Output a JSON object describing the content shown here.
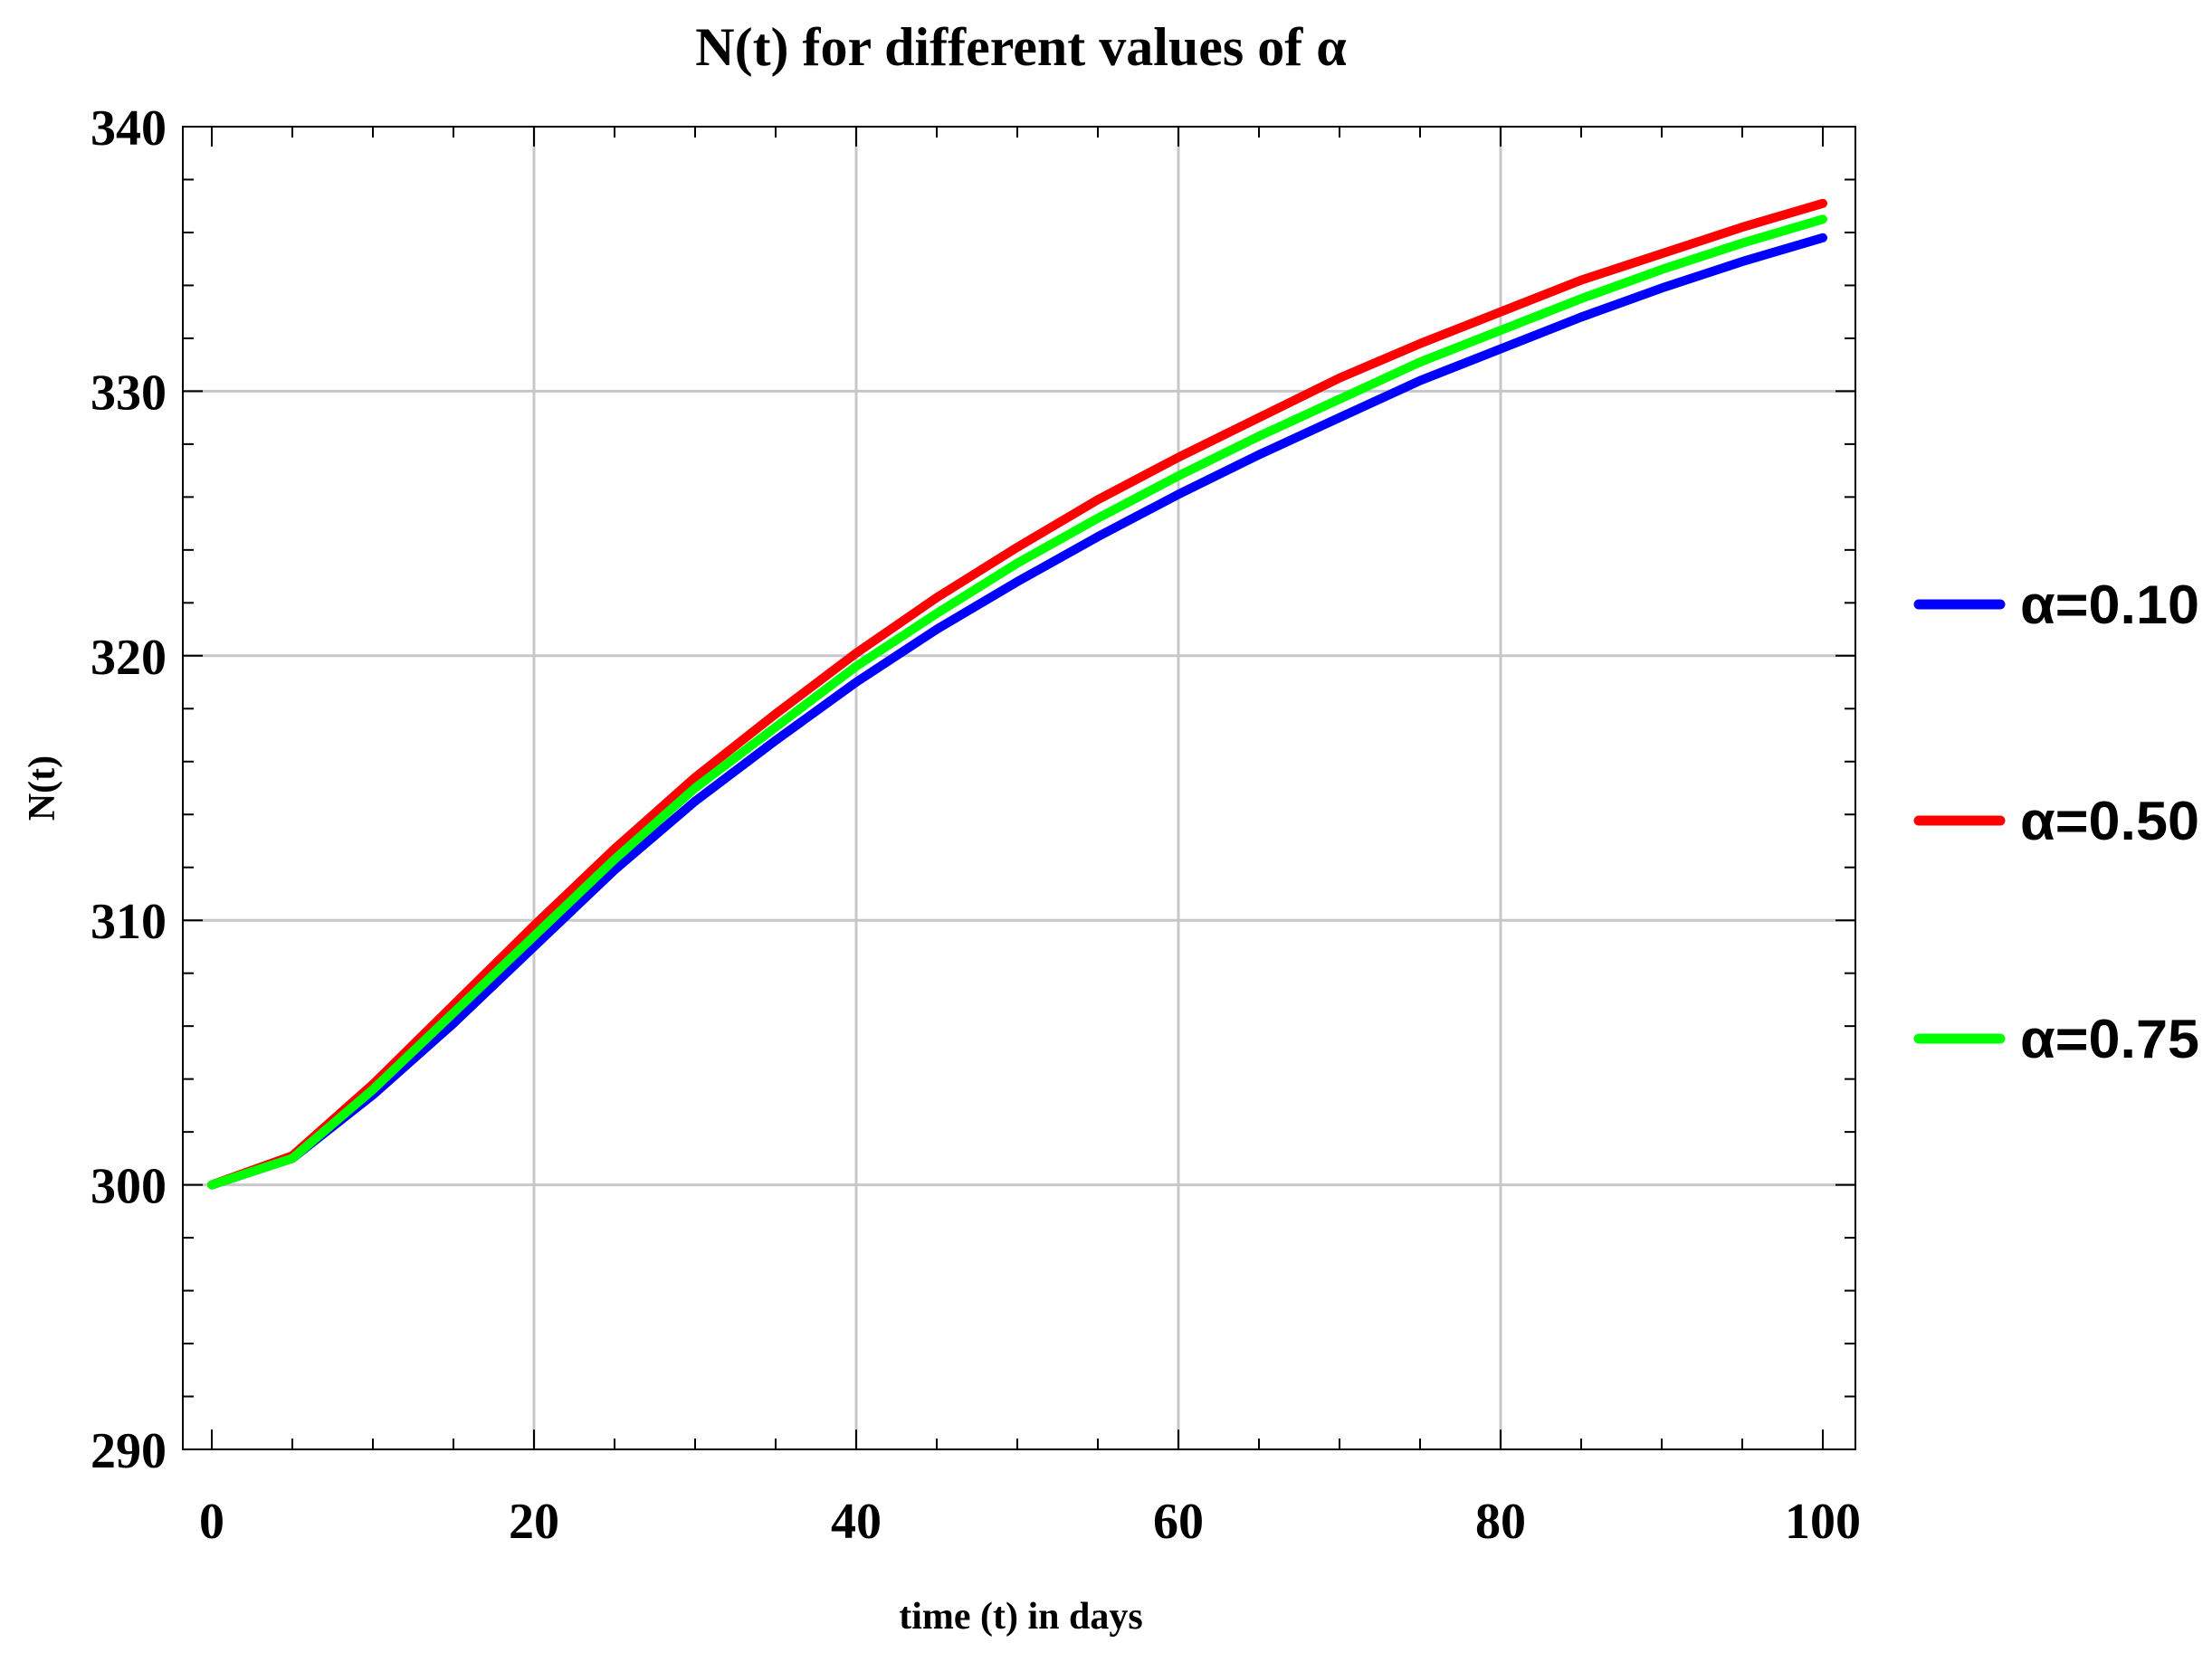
{
  "chart_data": {
    "type": "line",
    "title": "N(t) for different values of α",
    "xlabel": "time (t) in days",
    "ylabel": "N(t)",
    "xlim": [
      0,
      100
    ],
    "ylim": [
      290,
      340
    ],
    "x_ticks": [
      0,
      20,
      40,
      60,
      80,
      100
    ],
    "y_ticks": [
      290,
      300,
      310,
      320,
      330,
      340
    ],
    "grid": true,
    "legend_position": "right",
    "x": [
      0,
      5,
      10,
      15,
      20,
      25,
      30,
      35,
      40,
      45,
      50,
      55,
      60,
      65,
      70,
      75,
      80,
      85,
      90,
      95,
      100
    ],
    "series": [
      {
        "name": "α=0.10",
        "color": "#0000ff",
        "values": [
          300.0,
          301.0,
          303.4,
          306.1,
          309.0,
          311.9,
          314.5,
          316.8,
          319.0,
          321.0,
          322.8,
          324.5,
          326.1,
          327.6,
          329.0,
          330.4,
          331.6,
          332.8,
          333.9,
          334.9,
          335.8
        ]
      },
      {
        "name": "α=0.50",
        "color": "#ff0000",
        "values": [
          300.0,
          301.1,
          303.8,
          306.8,
          309.8,
          312.7,
          315.4,
          317.8,
          320.1,
          322.2,
          324.1,
          325.9,
          327.5,
          329.0,
          330.5,
          331.8,
          333.0,
          334.2,
          335.2,
          336.2,
          337.1
        ]
      },
      {
        "name": "α=0.75",
        "color": "#00ff00",
        "values": [
          300.0,
          301.0,
          303.6,
          306.5,
          309.4,
          312.3,
          315.0,
          317.3,
          319.6,
          321.6,
          323.5,
          325.2,
          326.8,
          328.3,
          329.7,
          331.1,
          332.3,
          333.5,
          334.6,
          335.6,
          336.5
        ]
      }
    ]
  }
}
